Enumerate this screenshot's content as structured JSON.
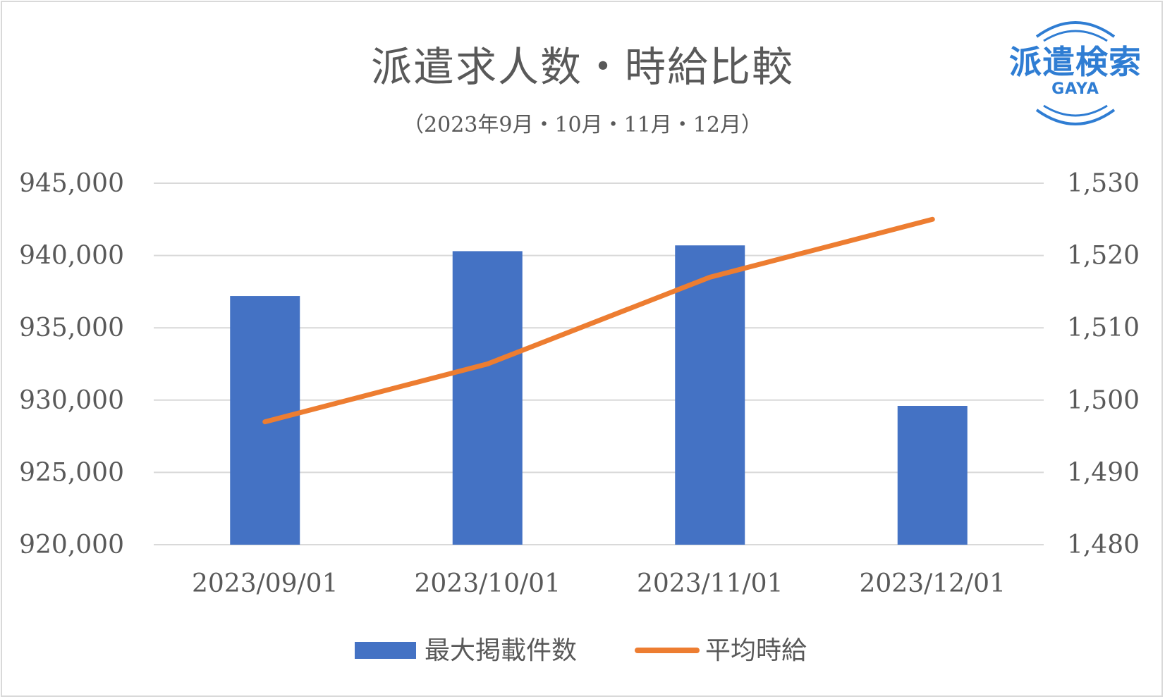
{
  "chart_data": {
    "type": "bar",
    "title": "派遣求人数・時給比較",
    "subtitle": "（2023年9月・10月・11月・12月）",
    "categories": [
      "2023/09/01",
      "2023/10/01",
      "2023/11/01",
      "2023/12/01"
    ],
    "series": [
      {
        "name": "最大掲載件数",
        "type": "bar",
        "axis": "left",
        "color": "#4472c4",
        "values": [
          937200,
          940300,
          940700,
          929600
        ]
      },
      {
        "name": "平均時給",
        "type": "line",
        "axis": "right",
        "color": "#ed7d31",
        "values": [
          1497,
          1505,
          1517,
          1525
        ]
      }
    ],
    "y_left": {
      "min": 920000,
      "max": 945000,
      "ticks": [
        920000,
        925000,
        930000,
        935000,
        940000,
        945000
      ],
      "tick_labels": [
        "920,000",
        "925,000",
        "930,000",
        "935,000",
        "940,000",
        "945,000"
      ]
    },
    "y_right": {
      "min": 1480,
      "max": 1530,
      "ticks": [
        1480,
        1490,
        1500,
        1510,
        1520,
        1530
      ],
      "tick_labels": [
        "1,480",
        "1,490",
        "1,500",
        "1,510",
        "1,520",
        "1,530"
      ]
    },
    "grid": true,
    "legend_position": "bottom"
  },
  "logo": {
    "text": "派遣検索",
    "sub": "GAYA"
  }
}
